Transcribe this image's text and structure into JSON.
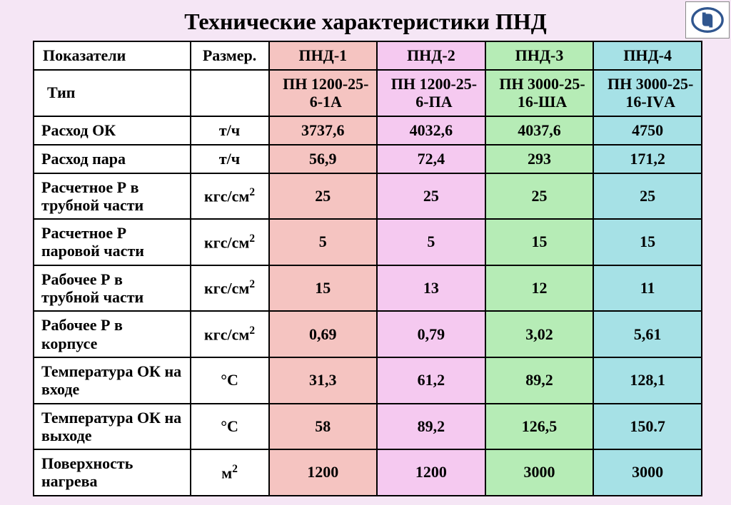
{
  "title": "Технические характеристики ПНД",
  "colors": {
    "page_bg": "#f5e6f5",
    "white": "#ffffff",
    "border": "#000000",
    "col1": "#f5c4c1",
    "col2": "#f5c9f0",
    "col3": "#b6ecb6",
    "col4": "#a6e1e6",
    "logo_stroke": "#30568f"
  },
  "header": {
    "indicator": "Показатели",
    "unit": "Размер.",
    "cols": [
      "ПНД-1",
      "ПНД-2",
      "ПНД-3",
      "ПНД-4"
    ]
  },
  "type_row": {
    "label": "Тип",
    "unit": "",
    "values": [
      "ПН 1200-25-6-1А",
      "ПН 1200-25-6-ПА",
      "ПН 3000-25-16-ША",
      "ПН 3000-25-16-IVА"
    ]
  },
  "rows": [
    {
      "label": "Расход  ОК",
      "unit": "т/ч",
      "values": [
        "3737,6",
        "4032,6",
        "4037,6",
        "4750"
      ]
    },
    {
      "label": "Расход пара",
      "unit": "т/ч",
      "values": [
        "56,9",
        "72,4",
        "293",
        "171,2"
      ]
    },
    {
      "label": "Расчетное Р в трубной части",
      "unit_html": "кгс/см<sup>2</sup>",
      "values": [
        "25",
        "25",
        "25",
        "25"
      ]
    },
    {
      "label": "Расчетное Р паровой части",
      "unit_html": "кгс/см<sup>2</sup>",
      "values": [
        "5",
        "5",
        "15",
        "15"
      ]
    },
    {
      "label": "Рабочее Р в трубной части",
      "unit_html": "кгс/см<sup>2</sup>",
      "values": [
        "15",
        "13",
        "12",
        "11"
      ]
    },
    {
      "label": "Рабочее Р в корпусе",
      "unit_html": "кгс/см<sup>2</sup>",
      "values": [
        "0,69",
        "0,79",
        "3,02",
        "5,61"
      ]
    },
    {
      "label": "Температура ОК на входе",
      "unit": "°С",
      "values": [
        "31,3",
        "61,2",
        "89,2",
        "128,1"
      ]
    },
    {
      "label": "Температура ОК на выходе",
      "unit": "°С",
      "values": [
        "58",
        "89,2",
        "126,5",
        "150.7"
      ]
    },
    {
      "label": "Поверхность нагрева",
      "unit_html": "м<sup>2</sup>",
      "values": [
        "1200",
        "1200",
        "3000",
        "3000"
      ]
    }
  ]
}
